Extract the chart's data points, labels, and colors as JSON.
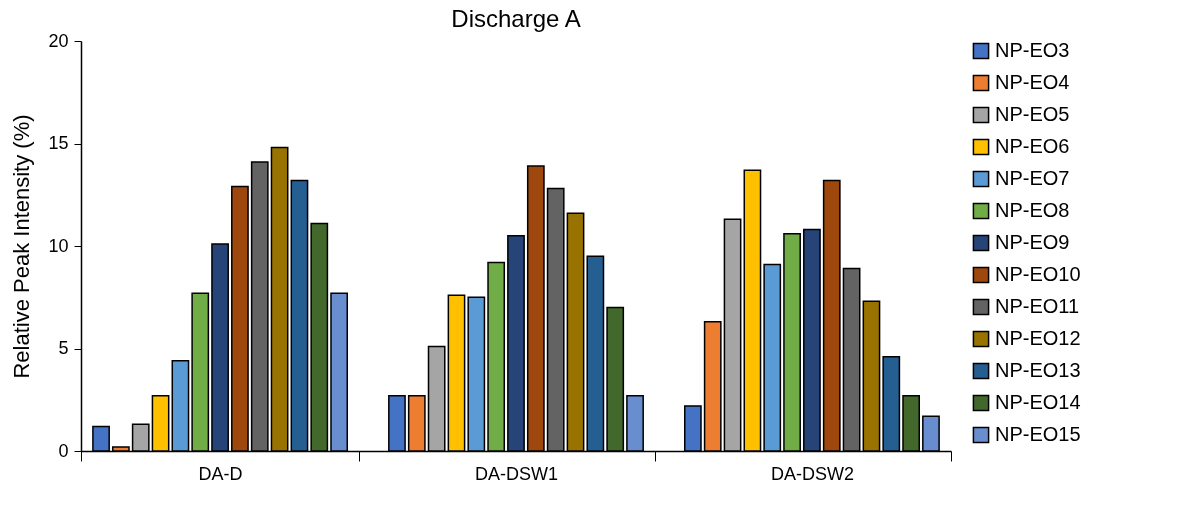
{
  "chart_data": {
    "type": "bar",
    "title": "Discharge A",
    "ylabel": "Relative Peak Intensity (%)",
    "categories": [
      "DA-D",
      "DA-DSW1",
      "DA-DSW2"
    ],
    "series": [
      {
        "name": "NP-EO3",
        "color": "#4472c4",
        "values": [
          1.2,
          2.7,
          2.2
        ]
      },
      {
        "name": "NP-EO4",
        "color": "#ed7d31",
        "values": [
          0.2,
          2.7,
          6.3
        ]
      },
      {
        "name": "NP-EO5",
        "color": "#a5a5a5",
        "values": [
          1.3,
          5.1,
          11.3
        ]
      },
      {
        "name": "NP-EO6",
        "color": "#ffc000",
        "values": [
          2.7,
          7.6,
          13.7
        ]
      },
      {
        "name": "NP-EO7",
        "color": "#5b9bd5",
        "values": [
          4.4,
          7.5,
          9.1
        ]
      },
      {
        "name": "NP-EO8",
        "color": "#70ad47",
        "values": [
          7.7,
          9.2,
          10.6
        ]
      },
      {
        "name": "NP-EO9",
        "color": "#264478",
        "values": [
          10.1,
          10.5,
          10.8
        ]
      },
      {
        "name": "NP-EO10",
        "color": "#9e480e",
        "values": [
          12.9,
          13.9,
          13.2
        ]
      },
      {
        "name": "NP-EO11",
        "color": "#636363",
        "values": [
          14.1,
          12.8,
          8.9
        ]
      },
      {
        "name": "NP-EO12",
        "color": "#997300",
        "values": [
          14.8,
          11.6,
          7.3
        ]
      },
      {
        "name": "NP-EO13",
        "color": "#255e91",
        "values": [
          13.2,
          9.5,
          4.6
        ]
      },
      {
        "name": "NP-EO14",
        "color": "#43682b",
        "values": [
          11.1,
          7.0,
          2.7
        ]
      },
      {
        "name": "NP-EO15",
        "color": "#698ed0",
        "values": [
          7.7,
          2.7,
          1.7
        ]
      }
    ],
    "ylim": [
      0,
      20
    ],
    "yticks": [
      0,
      5,
      10,
      15,
      20
    ],
    "grid": false,
    "legend": "right"
  }
}
